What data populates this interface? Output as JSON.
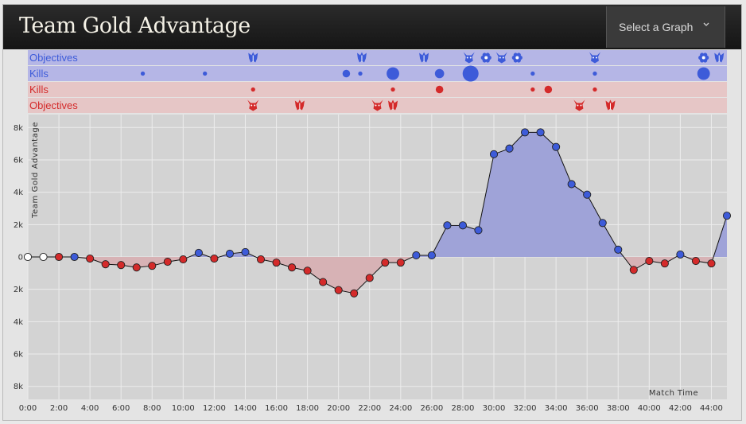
{
  "header": {
    "title": "Team Gold Advantage",
    "select_label": "Select a Graph"
  },
  "colors": {
    "blue_team": "#3d5bd9",
    "red_team": "#d42a2a",
    "blue_fill": "#9fa3d8",
    "red_fill": "#d7b2b5",
    "blue_lane": "#b5b6e6",
    "red_lane": "#e6c6c6",
    "plot_bg": "#d3d3d3",
    "grid": "#ececec"
  },
  "lanes": [
    {
      "label": "Objectives",
      "team": "blue",
      "kind": "objectives",
      "events": [
        {
          "t": 14.5,
          "icon": "bug-icon"
        },
        {
          "t": 21.5,
          "icon": "bug-icon"
        },
        {
          "t": 25.5,
          "icon": "bug-icon"
        },
        {
          "t": 28.4,
          "icon": "demon-icon"
        },
        {
          "t": 29.5,
          "icon": "flower-icon"
        },
        {
          "t": 30.5,
          "icon": "demon-icon"
        },
        {
          "t": 31.5,
          "icon": "flower-icon"
        },
        {
          "t": 36.5,
          "icon": "demon-icon"
        },
        {
          "t": 43.5,
          "icon": "flower-icon"
        },
        {
          "t": 44.5,
          "icon": "bug-icon"
        }
      ]
    },
    {
      "label": "Kills",
      "team": "blue",
      "kind": "kills",
      "events": [
        {
          "t": 7.4,
          "size": 1
        },
        {
          "t": 11.4,
          "size": 1
        },
        {
          "t": 20.5,
          "size": 3
        },
        {
          "t": 21.4,
          "size": 1
        },
        {
          "t": 23.5,
          "size": 6
        },
        {
          "t": 26.5,
          "size": 4
        },
        {
          "t": 28.5,
          "size": 8
        },
        {
          "t": 32.5,
          "size": 1
        },
        {
          "t": 36.5,
          "size": 1
        },
        {
          "t": 43.5,
          "size": 6
        }
      ]
    },
    {
      "label": "Kills",
      "team": "red",
      "kind": "kills",
      "events": [
        {
          "t": 14.5,
          "size": 1
        },
        {
          "t": 23.5,
          "size": 1
        },
        {
          "t": 26.5,
          "size": 3
        },
        {
          "t": 32.5,
          "size": 1
        },
        {
          "t": 33.5,
          "size": 3
        },
        {
          "t": 36.5,
          "size": 1
        }
      ]
    },
    {
      "label": "Objectives",
      "team": "red",
      "kind": "objectives",
      "events": [
        {
          "t": 14.5,
          "icon": "demon-icon"
        },
        {
          "t": 17.5,
          "icon": "bug-icon"
        },
        {
          "t": 22.5,
          "icon": "demon-icon"
        },
        {
          "t": 23.5,
          "icon": "bug-icon"
        },
        {
          "t": 35.5,
          "icon": "demon-icon"
        },
        {
          "t": 37.5,
          "icon": "bug-icon"
        }
      ]
    }
  ],
  "chart_data": {
    "type": "area",
    "title": "",
    "xlabel": "Match Time",
    "ylabel": "Team Gold Advantage",
    "x_ticks": [
      "0:00",
      "2:00",
      "4:00",
      "6:00",
      "8:00",
      "10:00",
      "12:00",
      "14:00",
      "16:00",
      "18:00",
      "20:00",
      "22:00",
      "24:00",
      "26:00",
      "28:00",
      "30:00",
      "32:00",
      "34:00",
      "36:00",
      "38:00",
      "40:00",
      "42:00",
      "44:00"
    ],
    "y_ticks": [
      "8k",
      "6k",
      "4k",
      "2k",
      "0",
      "2k",
      "4k",
      "6k",
      "8k"
    ],
    "ylim": [
      -8800,
      8800
    ],
    "xlim": [
      0,
      45
    ],
    "x_minutes": [
      0,
      1,
      2,
      3,
      4,
      5,
      6,
      7,
      8,
      9,
      10,
      11,
      12,
      13,
      14,
      15,
      16,
      17,
      18,
      19,
      20,
      21,
      22,
      23,
      24,
      25,
      26,
      27,
      28,
      29,
      30,
      31,
      32,
      33,
      34,
      35,
      36,
      37,
      38,
      39,
      40,
      41,
      42,
      43,
      44,
      45
    ],
    "values": [
      0,
      0,
      0,
      0,
      -100,
      -450,
      -500,
      -650,
      -550,
      -300,
      -150,
      250,
      -100,
      200,
      300,
      -150,
      -350,
      -650,
      -850,
      -1550,
      -2050,
      -2250,
      -1300,
      -350,
      -350,
      100,
      100,
      1950,
      1950,
      1650,
      6350,
      6700,
      7700,
      7700,
      6800,
      4500,
      3850,
      2100,
      450,
      -800,
      -250,
      -400,
      150,
      -250,
      -400,
      2550
    ],
    "points_team": [
      "none",
      "none",
      "red",
      "blue",
      "red",
      "red",
      "red",
      "red",
      "red",
      "red",
      "red",
      "blue",
      "red",
      "blue",
      "blue",
      "red",
      "red",
      "red",
      "red",
      "red",
      "red",
      "red",
      "red",
      "red",
      "red",
      "blue",
      "blue",
      "blue",
      "blue",
      "blue",
      "blue",
      "blue",
      "blue",
      "blue",
      "blue",
      "blue",
      "blue",
      "blue",
      "blue",
      "red",
      "red",
      "red",
      "blue",
      "red",
      "red",
      "blue"
    ],
    "grid": true
  }
}
